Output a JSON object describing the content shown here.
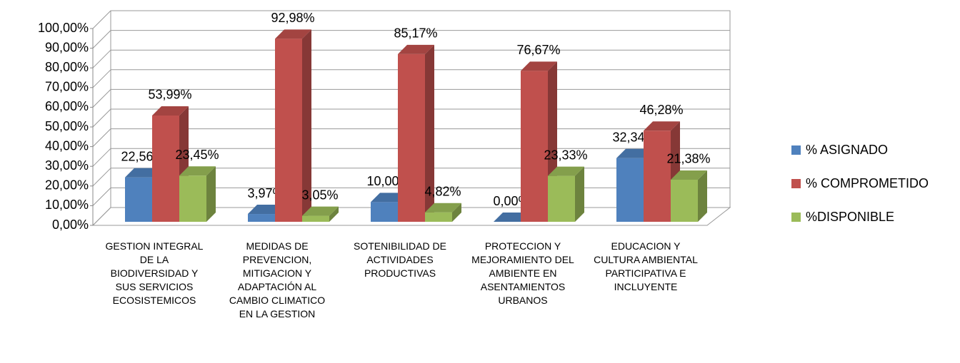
{
  "chart_data": {
    "type": "bar3d",
    "categories": [
      "GESTION INTEGRAL DE LA BIODIVERSIDAD Y SUS SERVICIOS ECOSISTEMICOS",
      "MEDIDAS DE PREVENCION, MITIGACION Y ADAPTACIÓN AL CAMBIO CLIMATICO EN LA GESTION",
      "SOTENIBILIDAD DE ACTIVIDADES PRODUCTIVAS",
      "PROTECCION Y MEJORAMIENTO DEL AMBIENTE EN ASENTAMIENTOS URBANOS",
      "EDUCACION Y CULTURA AMBIENTAL PARTICIPATIVA E INCLUYENTE"
    ],
    "series": [
      {
        "name": "% ASIGNADO",
        "color": "#4f81bd",
        "values": [
          22.56,
          3.97,
          10.0,
          0.0,
          32.34
        ],
        "value_labels": [
          "22,56%",
          "3,97%",
          "10,00%",
          "0,00%",
          "32,34%"
        ]
      },
      {
        "name": "% COMPROMETIDO",
        "color": "#c0504d",
        "values": [
          53.99,
          92.98,
          85.17,
          76.67,
          46.28
        ],
        "value_labels": [
          "53,99%",
          "92,98%",
          "85,17%",
          "76,67%",
          "46,28%"
        ]
      },
      {
        "name": "%DISPONIBLE",
        "color": "#9bbb59",
        "values": [
          23.45,
          3.05,
          4.82,
          23.33,
          21.38
        ],
        "value_labels": [
          "23,45%",
          "3,05%",
          "4,82%",
          "23,33%",
          "21,38%"
        ]
      }
    ],
    "ylim": [
      0,
      100
    ],
    "yticks": [
      {
        "value": 0,
        "label": "0,00%"
      },
      {
        "value": 10,
        "label": "10,00%"
      },
      {
        "value": 20,
        "label": "20,00%"
      },
      {
        "value": 30,
        "label": "30,00%"
      },
      {
        "value": 40,
        "label": "40,00%"
      },
      {
        "value": 50,
        "label": "50,00%"
      },
      {
        "value": 60,
        "label": "60,00%"
      },
      {
        "value": 70,
        "label": "70,00%"
      },
      {
        "value": 80,
        "label": "80,00%"
      },
      {
        "value": 90,
        "label": "90,00%"
      },
      {
        "value": 100,
        "label": "100,00%"
      }
    ],
    "grid": true,
    "legend": "right"
  }
}
